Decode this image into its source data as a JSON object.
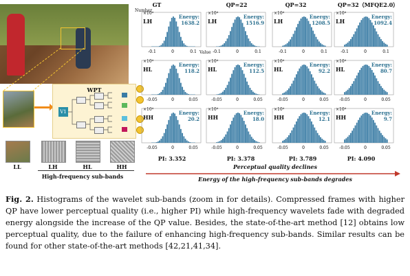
{
  "figure": {
    "wpt_label": "WPT",
    "v1_label": "V1",
    "subbands": {
      "labels": [
        "LL",
        "LH",
        "HL",
        "HH"
      ],
      "caption": "High-frequency sub-bands"
    },
    "columns": [
      "GT",
      "QP=22",
      "QP=32",
      "QP=32（MFQE2.0）"
    ],
    "y_axis_label": "Number",
    "x_axis_label": "Value",
    "scale_label": "×10⁴",
    "energy_label": "Energy:",
    "rows": [
      {
        "band": "LH",
        "energy": [
          "1638.2",
          "1516.9",
          "1208.5",
          "1092.4"
        ],
        "ticks": [
          "-0.1",
          "0",
          "0.1"
        ]
      },
      {
        "band": "HL",
        "energy": [
          "118.2",
          "112.5",
          "92.2",
          "80.7"
        ],
        "ticks": [
          "-0.05",
          "0",
          "0.05"
        ]
      },
      {
        "band": "HH",
        "energy": [
          "20.2",
          "18.0",
          "12.1",
          "9.7"
        ],
        "ticks": [
          "-0.05",
          "0",
          "0.05"
        ]
      }
    ],
    "pi": [
      "PI: 3.352",
      "PI: 3.378",
      "PI: 3.789",
      "PI: 4.090"
    ],
    "trend1": "Perceptual quality declines",
    "trend2": "Energy of the high-frequency sub-bands degrades"
  },
  "caption": {
    "label": "Fig. 2.",
    "text": "Histograms of the wavelet sub-bands (zoom in for details). Compressed frames with higher QP have lower perceptual quality (i.e., higher PI) while high-frequency wavelets fade with degraded energy alongside the increase of the QP value. Besides, the state-of-the-art method [12] obtains low perceptual quality, due to the failure of enhancing high-frequency sub-bands. Similar results can be found for other state-of-the-art methods [42,21,41,34]."
  },
  "colors": {
    "accent": "#3a7ca5",
    "arrow": "#c0392b",
    "highlight": "#f4c430"
  }
}
